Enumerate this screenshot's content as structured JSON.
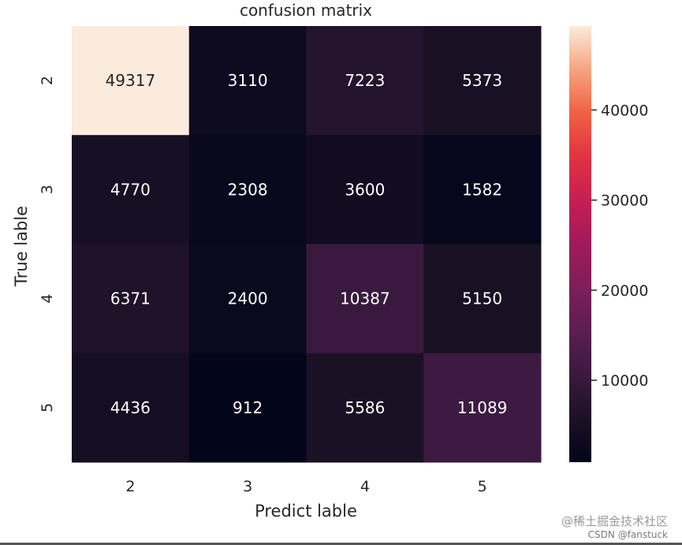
{
  "chart_data": {
    "type": "heatmap",
    "title": "confusion matrix",
    "xlabel": "Predict lable",
    "ylabel": "True lable",
    "x_categories": [
      "2",
      "3",
      "4",
      "5"
    ],
    "y_categories": [
      "2",
      "3",
      "4",
      "5"
    ],
    "values": [
      [
        49317,
        3110,
        7223,
        5373
      ],
      [
        4770,
        2308,
        3600,
        1582
      ],
      [
        6371,
        2400,
        10387,
        5150
      ],
      [
        4436,
        912,
        5586,
        11089
      ]
    ],
    "colormap": "rocket",
    "colorbar": {
      "range": [
        912,
        49317
      ],
      "ticks": [
        10000,
        20000,
        30000,
        40000
      ],
      "tick_labels": [
        "10000",
        "20000",
        "30000",
        "40000"
      ]
    },
    "cell_text_color": "#ffffff",
    "max_cell_text_color": "#262626"
  },
  "watermark": {
    "line1": "@稀土掘金技术社区",
    "line2": "CSDN @fanstuck"
  }
}
